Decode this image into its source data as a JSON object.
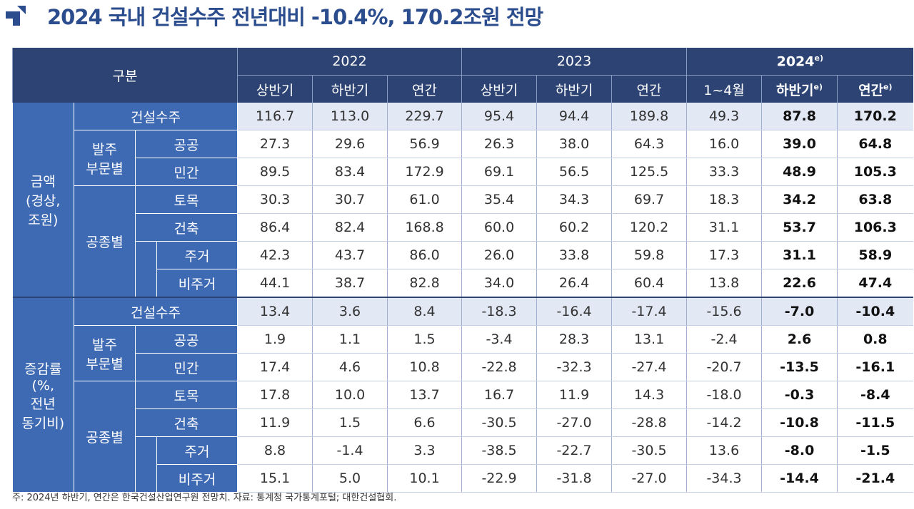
{
  "header": {
    "title": "2024 국내 건설수주 전년대비 -10.4%, 170.2조원 전망"
  },
  "table": {
    "corner": "구분",
    "years": [
      {
        "label": "2022",
        "sup": ""
      },
      {
        "label": "2023",
        "sup": ""
      },
      {
        "label": "2024",
        "sup": "e)"
      }
    ],
    "periods": [
      {
        "label": "상반기",
        "sup": ""
      },
      {
        "label": "하반기",
        "sup": ""
      },
      {
        "label": "연간",
        "sup": ""
      },
      {
        "label": "상반기",
        "sup": ""
      },
      {
        "label": "하반기",
        "sup": ""
      },
      {
        "label": "연간",
        "sup": ""
      },
      {
        "label": "1~4월",
        "sup": ""
      },
      {
        "label": "하반기",
        "sup": "e)"
      },
      {
        "label": "연간",
        "sup": "e)"
      }
    ],
    "sections": [
      {
        "label": "금액\n(경상,\n조원)",
        "total": {
          "label": "건설수주",
          "values": [
            "116.7",
            "113.0",
            "229.7",
            "95.4",
            "94.4",
            "189.8",
            "49.3",
            "87.8",
            "170.2"
          ]
        },
        "orderer": {
          "label": "발주\n부문별",
          "rows": [
            {
              "label": "공공",
              "values": [
                "27.3",
                "29.6",
                "56.9",
                "26.3",
                "38.0",
                "64.3",
                "16.0",
                "39.0",
                "64.8"
              ]
            },
            {
              "label": "민간",
              "values": [
                "89.5",
                "83.4",
                "172.9",
                "69.1",
                "56.5",
                "125.5",
                "33.3",
                "48.9",
                "105.3"
              ]
            }
          ]
        },
        "work": {
          "label": "공종별",
          "rows": [
            {
              "label": "토목",
              "values": [
                "30.3",
                "30.7",
                "61.0",
                "35.4",
                "34.3",
                "69.7",
                "18.3",
                "34.2",
                "63.8"
              ]
            },
            {
              "label": "건축",
              "values": [
                "86.4",
                "82.4",
                "168.8",
                "60.0",
                "60.2",
                "120.2",
                "31.1",
                "53.7",
                "106.3"
              ]
            },
            {
              "label": "주거",
              "values": [
                "42.3",
                "43.7",
                "86.0",
                "26.0",
                "33.8",
                "59.8",
                "17.3",
                "31.1",
                "58.9"
              ]
            },
            {
              "label": "비주거",
              "values": [
                "44.1",
                "38.7",
                "82.8",
                "34.0",
                "26.4",
                "60.4",
                "13.8",
                "22.6",
                "47.4"
              ]
            }
          ]
        }
      },
      {
        "label": "증감률\n(%,\n전년\n동기비)",
        "total": {
          "label": "건설수주",
          "values": [
            "13.4",
            "3.6",
            "8.4",
            "-18.3",
            "-16.4",
            "-17.4",
            "-15.6",
            "-7.0",
            "-10.4"
          ]
        },
        "orderer": {
          "label": "발주\n부문별",
          "rows": [
            {
              "label": "공공",
              "values": [
                "1.9",
                "1.1",
                "1.5",
                "-3.4",
                "28.3",
                "13.1",
                "-2.4",
                "2.6",
                "0.8"
              ]
            },
            {
              "label": "민간",
              "values": [
                "17.4",
                "4.6",
                "10.8",
                "-22.8",
                "-32.3",
                "-27.4",
                "-20.7",
                "-13.5",
                "-16.1"
              ]
            }
          ]
        },
        "work": {
          "label": "공종별",
          "rows": [
            {
              "label": "토목",
              "values": [
                "17.8",
                "10.0",
                "13.7",
                "16.7",
                "11.9",
                "14.3",
                "-18.0",
                "-0.3",
                "-8.4"
              ]
            },
            {
              "label": "건축",
              "values": [
                "11.9",
                "1.5",
                "6.6",
                "-30.5",
                "-27.0",
                "-28.8",
                "-14.2",
                "-10.8",
                "-11.5"
              ]
            },
            {
              "label": "주거",
              "values": [
                "8.8",
                "-1.4",
                "3.3",
                "-38.5",
                "-22.7",
                "-30.5",
                "13.6",
                "-8.0",
                "-1.5"
              ]
            },
            {
              "label": "비주거",
              "values": [
                "15.1",
                "5.0",
                "10.1",
                "-22.9",
                "-31.8",
                "-27.0",
                "-34.3",
                "-14.4",
                "-21.4"
              ]
            }
          ]
        }
      }
    ]
  },
  "footer": {
    "note": "주: 2024년 하반기, 연간은 한국건설산업연구원 전망치.  자료: 통계청 국가통계포털; 대한건설협회."
  },
  "colors": {
    "title": "#2b4d8e",
    "header_bg": "#2c4374",
    "label_bg": "#3e69b3",
    "total_row_bg": "#e2e8f4"
  }
}
